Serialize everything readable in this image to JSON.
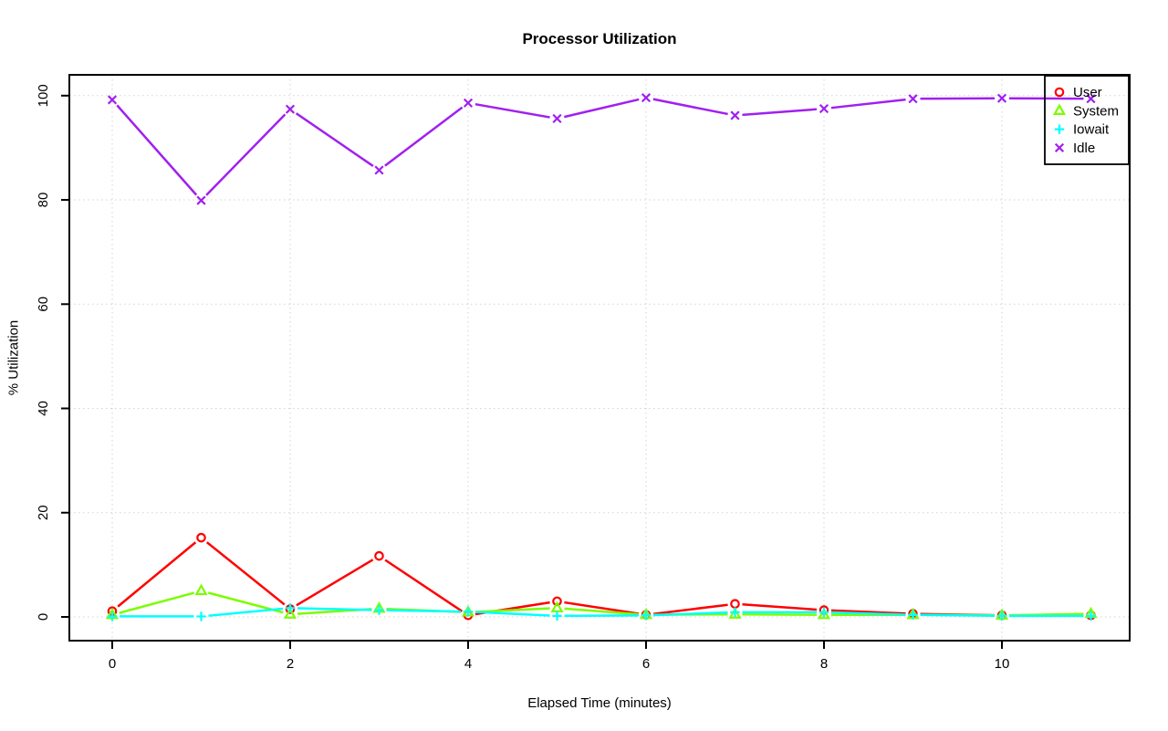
{
  "window": {
    "background": "#ffffff"
  },
  "chart_data": {
    "type": "line",
    "title": "Processor Utilization",
    "xlabel": "Elapsed Time (minutes)",
    "ylabel": "% Utilization",
    "x": [
      0,
      1,
      2,
      3,
      4,
      5,
      6,
      7,
      8,
      9,
      10,
      11
    ],
    "series": [
      {
        "name": "User",
        "color": "#ff0000",
        "marker": "circle",
        "values": [
          1.1,
          15.2,
          1.5,
          11.7,
          0.3,
          3.0,
          0.4,
          2.5,
          1.3,
          0.6,
          0.3,
          0.3
        ]
      },
      {
        "name": "System",
        "color": "#7cfc00",
        "marker": "triangle",
        "values": [
          0.4,
          5.0,
          0.5,
          1.6,
          0.9,
          1.7,
          0.4,
          0.5,
          0.4,
          0.4,
          0.3,
          0.6
        ]
      },
      {
        "name": "Iowait",
        "color": "#00ffff",
        "marker": "plus",
        "values": [
          0.1,
          0.1,
          1.7,
          1.3,
          1.0,
          0.2,
          0.3,
          0.9,
          0.9,
          0.4,
          0.2,
          0.2
        ]
      },
      {
        "name": "Idle",
        "color": "#a020f0",
        "marker": "x",
        "values": [
          99.2,
          79.9,
          97.4,
          85.7,
          98.6,
          95.6,
          99.6,
          96.2,
          97.5,
          99.4,
          99.5,
          99.4
        ]
      }
    ],
    "x_ticks": [
      0,
      2,
      4,
      6,
      8,
      10
    ],
    "y_ticks": [
      0,
      20,
      40,
      60,
      80,
      100
    ],
    "ylim": [
      -4,
      104
    ],
    "grid": "dotted",
    "legend_position": "top-right",
    "legend": [
      "User",
      "System",
      "Iowait",
      "Idle"
    ]
  },
  "style": {
    "grid_color": "#d3d3d3",
    "axis_color": "#000000",
    "text_color": "#000000"
  }
}
